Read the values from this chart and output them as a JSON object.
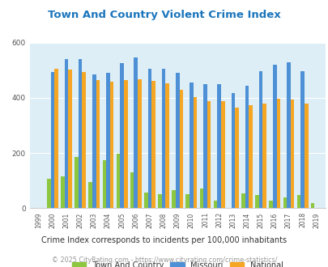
{
  "title": "Town And Country Violent Crime Index",
  "years": [
    1999,
    2000,
    2001,
    2002,
    2003,
    2004,
    2005,
    2006,
    2007,
    2008,
    2009,
    2010,
    2011,
    2012,
    2013,
    2014,
    2015,
    2016,
    2017,
    2018,
    2019
  ],
  "town_and_country": [
    0,
    108,
    115,
    185,
    95,
    175,
    198,
    130,
    58,
    50,
    65,
    50,
    72,
    28,
    0,
    55,
    48,
    28,
    38,
    48,
    18
  ],
  "missouri": [
    0,
    495,
    540,
    540,
    485,
    490,
    525,
    548,
    505,
    505,
    490,
    455,
    450,
    450,
    418,
    443,
    498,
    520,
    528,
    498,
    0
  ],
  "national": [
    0,
    505,
    504,
    495,
    465,
    460,
    465,
    468,
    463,
    453,
    428,
    403,
    388,
    388,
    365,
    373,
    380,
    397,
    395,
    380,
    0
  ],
  "ylim": [
    0,
    600
  ],
  "yticks": [
    0,
    200,
    400,
    600
  ],
  "color_town": "#8dc63f",
  "color_missouri": "#4d90d5",
  "color_national": "#f5a623",
  "background_color": "#ddeef6",
  "title_color": "#1a75bc",
  "subtitle": "Crime Index corresponds to incidents per 100,000 inhabitants",
  "footer": "© 2025 CityRating.com - https://www.cityrating.com/crime-statistics/",
  "subtitle_color": "#333333",
  "footer_color": "#999999"
}
